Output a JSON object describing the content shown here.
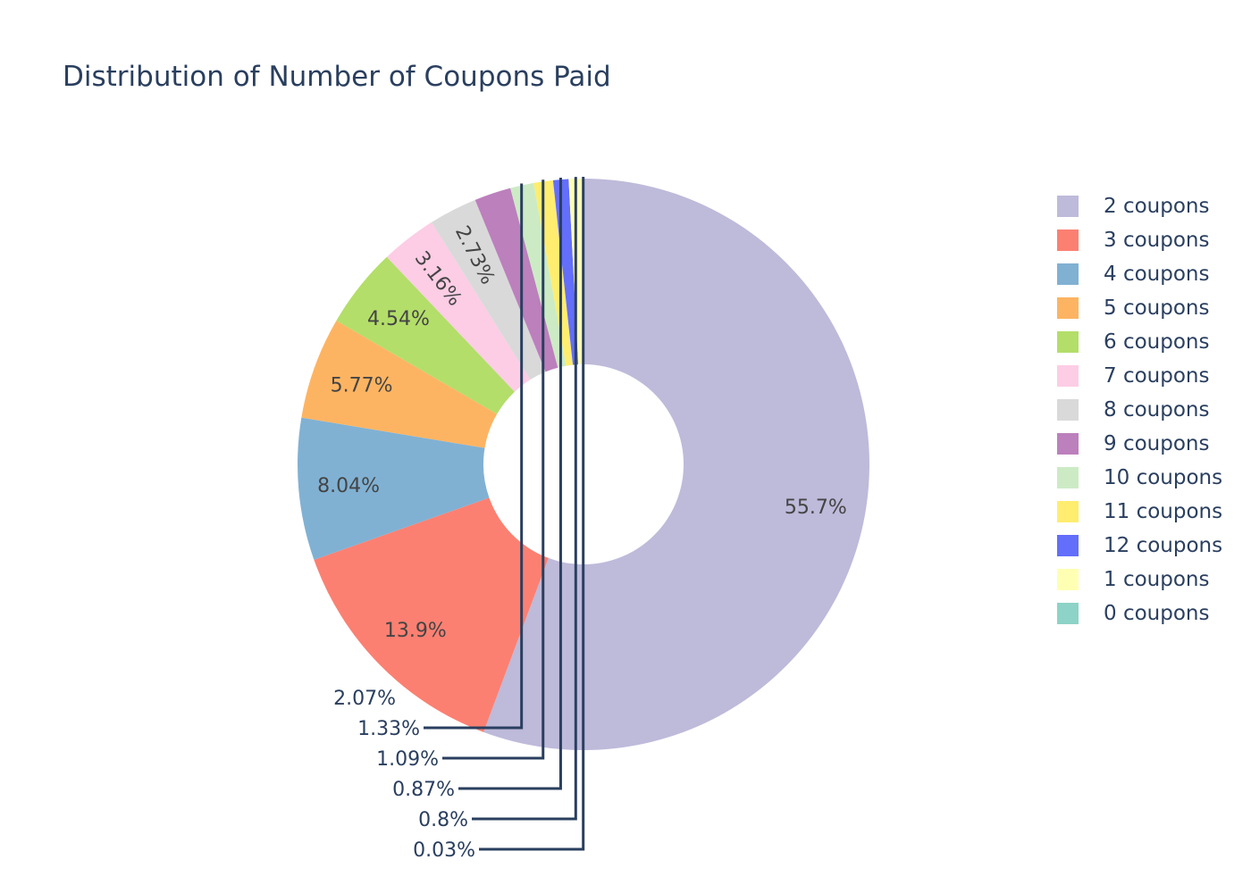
{
  "chart_data": {
    "type": "pie",
    "hole": true,
    "title": "Distribution of Number of Coupons Paid",
    "slices": [
      {
        "label": "2 coupons",
        "pct": 55.7,
        "pct_text": "55.7%",
        "color": "#bebada"
      },
      {
        "label": "3 coupons",
        "pct": 13.9,
        "pct_text": "13.9%",
        "color": "#fb8072"
      },
      {
        "label": "4 coupons",
        "pct": 8.04,
        "pct_text": "8.04%",
        "color": "#80b1d3"
      },
      {
        "label": "5 coupons",
        "pct": 5.77,
        "pct_text": "5.77%",
        "color": "#fdb462"
      },
      {
        "label": "6 coupons",
        "pct": 4.54,
        "pct_text": "4.54%",
        "color": "#b3de69"
      },
      {
        "label": "7 coupons",
        "pct": 3.16,
        "pct_text": "3.16%",
        "color": "#fccde5"
      },
      {
        "label": "8 coupons",
        "pct": 2.73,
        "pct_text": "2.73%",
        "color": "#d9d9d9"
      },
      {
        "label": "9 coupons",
        "pct": 2.07,
        "pct_text": "2.07%",
        "color": "#bc80bd"
      },
      {
        "label": "10 coupons",
        "pct": 1.33,
        "pct_text": "1.33%",
        "color": "#ccebc5"
      },
      {
        "label": "11 coupons",
        "pct": 1.09,
        "pct_text": "1.09%",
        "color": "#ffed6f"
      },
      {
        "label": "12 coupons",
        "pct": 0.87,
        "pct_text": "0.87%",
        "color": "#636efa"
      },
      {
        "label": "1 coupons",
        "pct": 0.8,
        "pct_text": "0.8%",
        "color": "#ffffb3"
      },
      {
        "label": "0 coupons",
        "pct": 0.03,
        "pct_text": "0.03%",
        "color": "#8dd3c7"
      }
    ],
    "legend_position": "right"
  }
}
